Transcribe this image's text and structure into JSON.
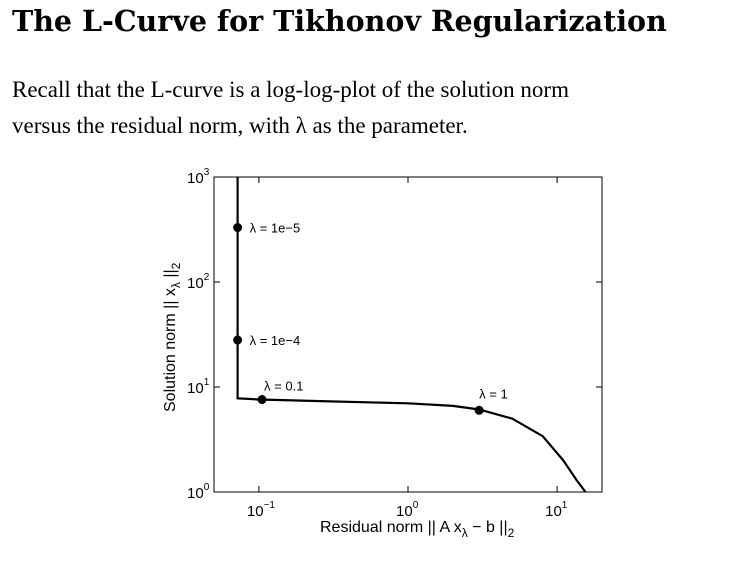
{
  "page": {
    "title": "The L-Curve for Tikhonov Regularization",
    "paragraph_line1": "Recall that the L-curve is a log-log-plot of the solution norm",
    "paragraph_line2": "versus the residual norm, with λ as the parameter."
  },
  "chart_data": {
    "type": "line",
    "xscale": "log",
    "yscale": "log",
    "xlim": [
      0.05,
      20
    ],
    "ylim": [
      1,
      1000
    ],
    "x_ticks": [
      {
        "base": "10",
        "exp": "−1",
        "value": 0.1
      },
      {
        "base": "10",
        "exp": "0",
        "value": 1
      },
      {
        "base": "10",
        "exp": "1",
        "value": 10
      }
    ],
    "y_ticks": [
      {
        "base": "10",
        "exp": "0",
        "value": 1
      },
      {
        "base": "10",
        "exp": "1",
        "value": 10
      },
      {
        "base": "10",
        "exp": "2",
        "value": 100
      },
      {
        "base": "10",
        "exp": "3",
        "value": 1000
      }
    ],
    "xlabel": {
      "text": "Residual norm || A x",
      "sub": "λ",
      "tail": " − b ||",
      "sub2": "2"
    },
    "ylabel": {
      "text": "Solution norm || x",
      "sub": "λ",
      "tail": " ||",
      "sub2": "2"
    },
    "curve": {
      "x": [
        0.072,
        0.072,
        0.072,
        0.072,
        0.1,
        0.3,
        1.0,
        2.0,
        3.0,
        5.0,
        8.0,
        11.0,
        13.5,
        15.5
      ],
      "y": [
        1000,
        300,
        30,
        7.8,
        7.6,
        7.3,
        7.0,
        6.6,
        6.1,
        5.0,
        3.4,
        2.0,
        1.3,
        1.0
      ]
    },
    "points": [
      {
        "label": "λ = 1e−5",
        "x": 0.072,
        "y": 330
      },
      {
        "label": "λ = 1e−4",
        "x": 0.072,
        "y": 28
      },
      {
        "label": "λ = 0.1",
        "x": 0.105,
        "y": 7.6
      },
      {
        "label": "λ = 1",
        "x": 3.0,
        "y": 6.0
      }
    ]
  }
}
